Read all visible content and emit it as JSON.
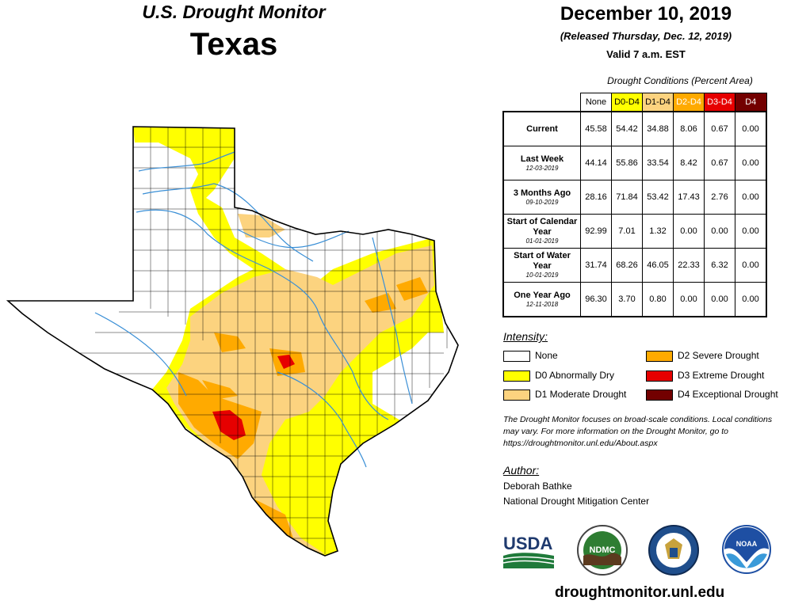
{
  "header": {
    "title": "U.S. Drought Monitor",
    "state": "Texas",
    "date": "December 10, 2019",
    "released": "(Released Thursday, Dec. 12, 2019)",
    "valid": "Valid 7 a.m. EST"
  },
  "table": {
    "caption": "Drought Conditions (Percent Area)",
    "columns": [
      {
        "label": "None",
        "color": "#ffffff"
      },
      {
        "label": "D0-D4",
        "color": "#ffff00"
      },
      {
        "label": "D1-D4",
        "color": "#fcd37f"
      },
      {
        "label": "D2-D4",
        "color": "#ffaa00"
      },
      {
        "label": "D3-D4",
        "color": "#e60000"
      },
      {
        "label": "D4",
        "color": "#730000"
      }
    ],
    "rows": [
      {
        "label": "Current",
        "sub": "",
        "values": [
          "45.58",
          "54.42",
          "34.88",
          "8.06",
          "0.67",
          "0.00"
        ]
      },
      {
        "label": "Last Week",
        "sub": "12-03-2019",
        "values": [
          "44.14",
          "55.86",
          "33.54",
          "8.42",
          "0.67",
          "0.00"
        ]
      },
      {
        "label": "3 Months Ago",
        "sub": "09-10-2019",
        "values": [
          "28.16",
          "71.84",
          "53.42",
          "17.43",
          "2.76",
          "0.00"
        ]
      },
      {
        "label": "Start of Calendar Year",
        "sub": "01-01-2019",
        "values": [
          "92.99",
          "7.01",
          "1.32",
          "0.00",
          "0.00",
          "0.00"
        ]
      },
      {
        "label": "Start of Water Year",
        "sub": "10-01-2019",
        "values": [
          "31.74",
          "68.26",
          "46.05",
          "22.33",
          "6.32",
          "0.00"
        ]
      },
      {
        "label": "One Year Ago",
        "sub": "12-11-2018",
        "values": [
          "96.30",
          "3.70",
          "0.80",
          "0.00",
          "0.00",
          "0.00"
        ]
      }
    ]
  },
  "intensity": {
    "title": "Intensity:",
    "items": [
      {
        "label": "None",
        "color": "#ffffff"
      },
      {
        "label": "D0 Abnormally Dry",
        "color": "#ffff00"
      },
      {
        "label": "D1 Moderate Drought",
        "color": "#fcd37f"
      },
      {
        "label": "D2 Severe Drought",
        "color": "#ffaa00"
      },
      {
        "label": "D3 Extreme Drought",
        "color": "#e60000"
      },
      {
        "label": "D4 Exceptional Drought",
        "color": "#730000"
      }
    ]
  },
  "note": "The Drought Monitor focuses on broad-scale conditions. Local conditions may vary. For more information on the Drought Monitor, go to https://droughtmonitor.unl.edu/About.aspx",
  "author": {
    "title": "Author:",
    "name": "Deborah Bathke",
    "org": "National Drought Mitigation Center"
  },
  "logos": {
    "usda": "USDA",
    "ndmc": "NDMC",
    "noaa": "NOAA"
  },
  "footer_url": "droughtmonitor.unl.edu",
  "colors": {
    "river": "#3a8fd6",
    "county_line": "#000000"
  }
}
